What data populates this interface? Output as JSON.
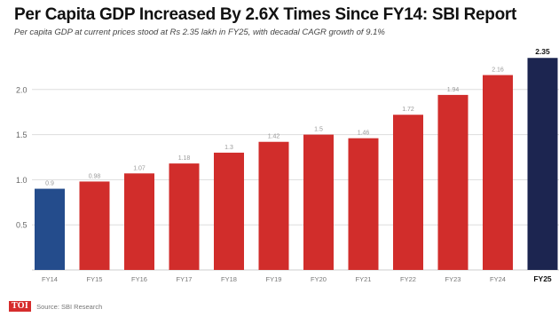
{
  "title": "Per Capita GDP Increased By 2.6X Times Since FY14: SBI Report",
  "subtitle": "Per capita GDP at current prices stood at Rs 2.35 lakh in FY25, with decadal CAGR growth of 9.1%",
  "footer": {
    "logo_text": "TOI",
    "source": "Source: SBI Research"
  },
  "colors": {
    "background": "#ffffff",
    "bar_red": "#d12d2b",
    "bar_blue": "#244c8c",
    "bar_navy": "#1c2550",
    "grid": "#dddddd",
    "label": "#999999",
    "label_bold": "#111111"
  },
  "chart_data": {
    "type": "bar",
    "title": "Per Capita GDP Increased By 2.6X Times Since FY14: SBI Report",
    "subtitle": "Per capita GDP at current prices stood at Rs 2.35 lakh in FY25, with decadal CAGR growth of 9.1%",
    "xlabel": "",
    "ylabel": "",
    "categories": [
      "FY14",
      "FY15",
      "FY16",
      "FY17",
      "FY18",
      "FY19",
      "FY20",
      "FY21",
      "FY22",
      "FY23",
      "FY24",
      "FY25"
    ],
    "values": [
      0.9,
      0.98,
      1.07,
      1.18,
      1.3,
      1.42,
      1.5,
      1.46,
      1.72,
      1.94,
      2.16,
      2.35
    ],
    "value_labels": [
      "0.9",
      "0.98",
      "1.07",
      "1.18",
      "1.3",
      "1.42",
      "1.5",
      "1.46",
      "1.72",
      "1.94",
      "2.16",
      "2.35"
    ],
    "bar_colors": [
      "#244c8c",
      "#d12d2b",
      "#d12d2b",
      "#d12d2b",
      "#d12d2b",
      "#d12d2b",
      "#d12d2b",
      "#d12d2b",
      "#d12d2b",
      "#d12d2b",
      "#d12d2b",
      "#1c2550"
    ],
    "highlight_category": "FY25",
    "yticks": [
      0.5,
      1.0,
      1.5,
      2.0
    ],
    "ytick_labels": [
      "0.5",
      "1.0",
      "1.5",
      "2.0"
    ],
    "ylim": [
      0,
      2.5
    ],
    "grid": true,
    "legend": "none"
  }
}
